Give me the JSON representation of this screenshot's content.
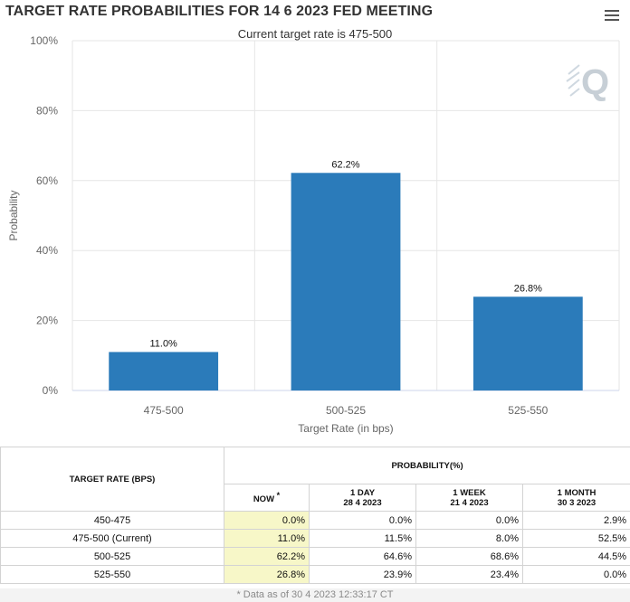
{
  "header": {
    "title": "TARGET RATE PROBABILITIES FOR 14 6 2023 FED MEETING",
    "subtitle": "Current target rate is 475-500",
    "menu_icon": "hamburger-menu-icon",
    "watermark_icon": "q-logo-icon"
  },
  "chart_data": {
    "type": "bar",
    "categories": [
      "475-500",
      "500-525",
      "525-550"
    ],
    "values": [
      11.0,
      62.2,
      26.8
    ],
    "data_labels": [
      "11.0%",
      "62.2%",
      "26.8%"
    ],
    "xlabel": "Target Rate (in bps)",
    "ylabel": "Probability",
    "ylim": [
      0,
      100
    ],
    "yticks": [
      0,
      20,
      40,
      60,
      80,
      100
    ],
    "ytick_labels": [
      "0%",
      "20%",
      "40%",
      "60%",
      "80%",
      "100%"
    ],
    "grid": true,
    "bar_color": "#2b7bba"
  },
  "table": {
    "rate_header": "TARGET RATE (BPS)",
    "prob_header": "PROBABILITY(%)",
    "columns": [
      {
        "label": "NOW",
        "date": ""
      },
      {
        "label": "1 DAY",
        "date": "28 4 2023"
      },
      {
        "label": "1 WEEK",
        "date": "21 4 2023"
      },
      {
        "label": "1 MONTH",
        "date": "30 3 2023"
      }
    ],
    "now_star": "*",
    "rows": [
      {
        "rate": "450-475",
        "values": [
          "0.0%",
          "0.0%",
          "0.0%",
          "2.9%"
        ]
      },
      {
        "rate": "475-500 (Current)",
        "values": [
          "11.0%",
          "11.5%",
          "8.0%",
          "52.5%"
        ]
      },
      {
        "rate": "500-525",
        "values": [
          "62.2%",
          "64.6%",
          "68.6%",
          "44.5%"
        ]
      },
      {
        "rate": "525-550",
        "values": [
          "26.8%",
          "23.9%",
          "23.4%",
          "0.0%"
        ]
      }
    ],
    "highlight_color": "#f7f7c8"
  },
  "footnote": "* Data as of 30 4 2023 12:33:17 CT"
}
